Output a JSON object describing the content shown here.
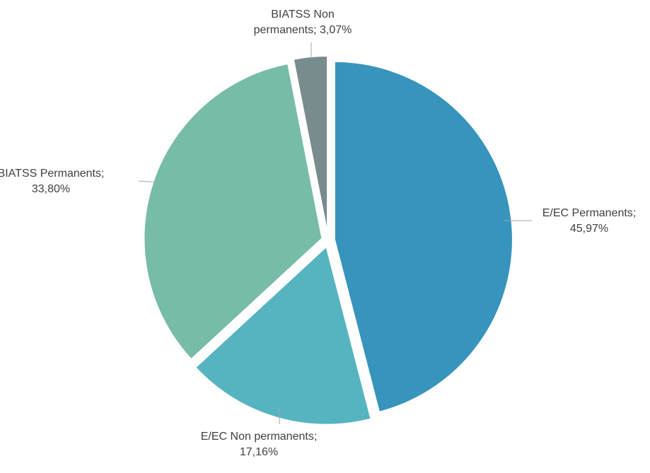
{
  "chart_data": {
    "type": "pie",
    "title": "",
    "slices": [
      {
        "label": "E/EC Permanents",
        "value": 45.97,
        "value_label": "45,97%",
        "color": "#3794BC"
      },
      {
        "label": "E/EC Non permanents",
        "value": 17.16,
        "value_label": "17,16%",
        "color": "#56B4C1"
      },
      {
        "label": "BIATSS Permanents",
        "value": 33.8,
        "value_label": "33,80%",
        "color": "#76BCA8"
      },
      {
        "label": "BIATSS Non permanents",
        "value": 3.07,
        "value_label": "3,07%",
        "color": "#788C8E"
      }
    ],
    "exploded": true,
    "data_labels": "category; percentage",
    "legend": "none",
    "leader_line_color": "#A6A6A6"
  }
}
